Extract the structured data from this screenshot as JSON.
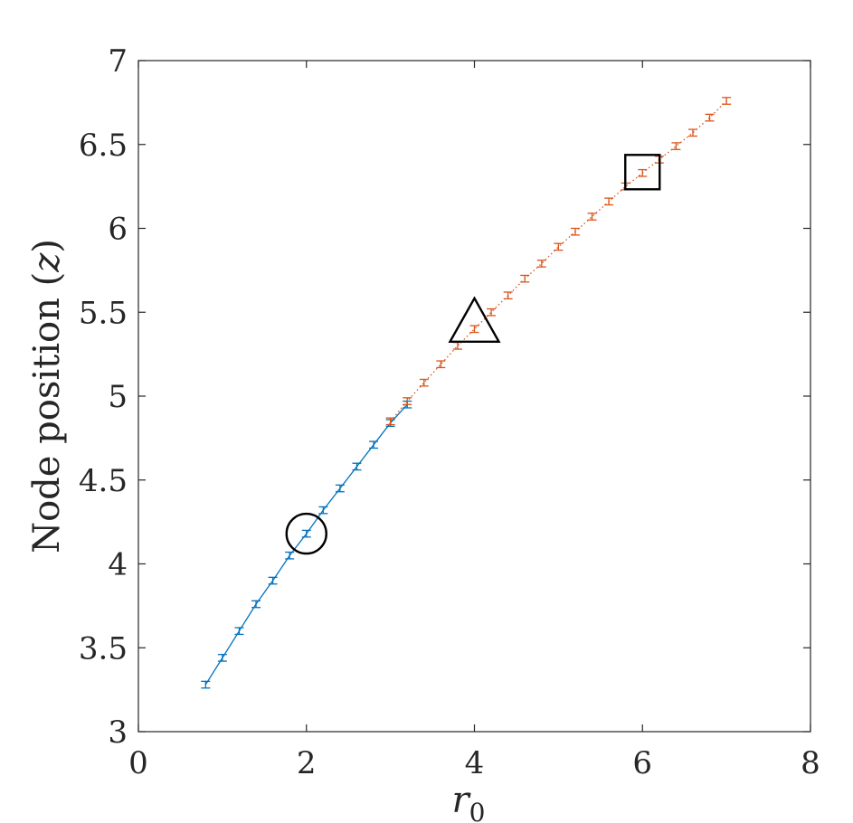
{
  "chart_data": {
    "type": "line",
    "xlabel": "r",
    "xlabel_subscript": "0",
    "ylabel_main": "Node position (",
    "ylabel_var": "z",
    "ylabel_close": ")",
    "xlim": [
      0,
      8
    ],
    "ylim": [
      3,
      7
    ],
    "xticks": [
      0,
      2,
      4,
      6,
      8
    ],
    "xtick_labels": [
      "0",
      "2",
      "4",
      "6",
      "8"
    ],
    "yticks": [
      3,
      3.5,
      4,
      4.5,
      5,
      5.5,
      6,
      6.5,
      7
    ],
    "ytick_labels": [
      "3",
      "3.5",
      "4",
      "4.5",
      "5",
      "5.5",
      "6",
      "6.5",
      "7"
    ],
    "grid": false,
    "series": [
      {
        "color": "#0072BD",
        "linestyle": "solid",
        "error": 0.02,
        "x": [
          0.8,
          1.0,
          1.2,
          1.4,
          1.6,
          1.8,
          2.0,
          2.2,
          2.4,
          2.6,
          2.8,
          3.0,
          3.2
        ],
        "y": [
          3.28,
          3.44,
          3.6,
          3.76,
          3.9,
          4.05,
          4.18,
          4.32,
          4.45,
          4.58,
          4.71,
          4.84,
          4.95
        ]
      },
      {
        "color": "#D95319",
        "linestyle": "dotted",
        "error": 0.02,
        "x": [
          3.0,
          3.2,
          3.4,
          3.6,
          3.8,
          4.0,
          4.2,
          4.4,
          4.6,
          4.8,
          5.0,
          5.2,
          5.4,
          5.6,
          5.8,
          6.0,
          6.2,
          6.4,
          6.6,
          6.8,
          7.0
        ],
        "y": [
          4.85,
          4.97,
          5.08,
          5.19,
          5.3,
          5.4,
          5.5,
          5.6,
          5.7,
          5.79,
          5.89,
          5.98,
          6.07,
          6.16,
          6.25,
          6.33,
          6.41,
          6.49,
          6.57,
          6.66,
          6.76
        ]
      }
    ],
    "annotations": [
      {
        "shape": "circle",
        "x": 2.0,
        "y": 4.18
      },
      {
        "shape": "triangle",
        "x": 4.0,
        "y": 5.4
      },
      {
        "shape": "square",
        "x": 6.0,
        "y": 6.33
      }
    ]
  }
}
